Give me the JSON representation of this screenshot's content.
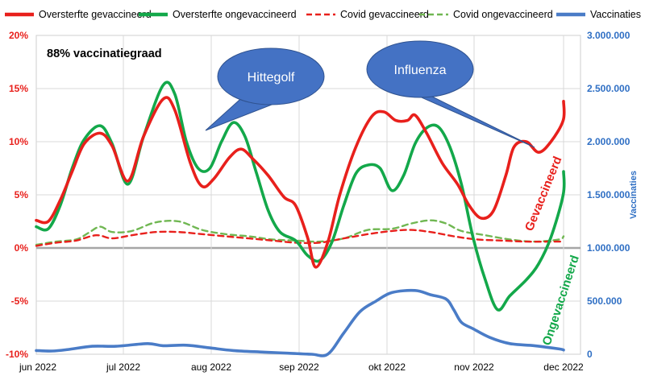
{
  "chart_data": {
    "type": "line",
    "subtitle": "88% vaccinatiegraad",
    "x_categories": [
      "jun 2022",
      "jul 2022",
      "aug 2022",
      "sep 2022",
      "okt 2022",
      "nov 2022",
      "dec 2022"
    ],
    "x_range_days": [
      0,
      185
    ],
    "y_left": {
      "ticks": [
        "20%",
        "15%",
        "10%",
        "5%",
        "0%",
        "-5%",
        "-10%"
      ],
      "min": -10,
      "max": 20
    },
    "y_right": {
      "label": "Vaccinaties",
      "ticks": [
        "3.000.000",
        "2.500.000",
        "2.000.000",
        "1.500.000",
        "1.000.000",
        "500.000",
        "0"
      ],
      "min": 0,
      "max": 3000000
    },
    "grid": true,
    "legend_position": "top",
    "series": [
      {
        "name": "Oversterfte gevaccineerd",
        "axis": "left",
        "color": "#e8201c",
        "dash": false,
        "points": [
          [
            0,
            2.6
          ],
          [
            3,
            2.5
          ],
          [
            6,
            4.5
          ],
          [
            9,
            7.2
          ],
          [
            12,
            9.8
          ],
          [
            16,
            10.8
          ],
          [
            19,
            9.6
          ],
          [
            23,
            6.3
          ],
          [
            27,
            10.5
          ],
          [
            32,
            14
          ],
          [
            35,
            13
          ],
          [
            39,
            8
          ],
          [
            42,
            5.8
          ],
          [
            45,
            6.5
          ],
          [
            49,
            8.5
          ],
          [
            52,
            9.3
          ],
          [
            55,
            8.4
          ],
          [
            59,
            6.8
          ],
          [
            63,
            4.8
          ],
          [
            66,
            4
          ],
          [
            69,
            1
          ],
          [
            71,
            -1.8
          ],
          [
            74,
            0.5
          ],
          [
            77,
            5
          ],
          [
            81,
            9.5
          ],
          [
            85,
            12.4
          ],
          [
            88,
            12.8
          ],
          [
            91,
            12
          ],
          [
            94,
            12
          ],
          [
            96,
            12.5
          ],
          [
            99,
            10.8
          ],
          [
            103,
            8
          ],
          [
            107,
            6
          ],
          [
            110,
            4
          ],
          [
            113,
            2.8
          ],
          [
            116,
            3.5
          ],
          [
            119,
            6.8
          ],
          [
            121,
            9.5
          ],
          [
            124,
            10
          ],
          [
            127,
            9
          ],
          [
            130,
            10
          ],
          [
            133,
            12
          ],
          [
            135,
            13.8
          ]
        ]
      },
      {
        "name": "Oversterfte ongevaccineerd",
        "axis": "left",
        "color": "#13a84a",
        "dash": false,
        "points": [
          [
            0,
            2
          ],
          [
            3,
            1.8
          ],
          [
            6,
            4
          ],
          [
            9,
            7.5
          ],
          [
            12,
            10.2
          ],
          [
            16,
            11.5
          ],
          [
            19,
            9.8
          ],
          [
            23,
            6
          ],
          [
            27,
            10.5
          ],
          [
            32,
            15.3
          ],
          [
            35,
            14.5
          ],
          [
            38,
            10
          ],
          [
            41,
            7.5
          ],
          [
            44,
            7.5
          ],
          [
            47,
            10
          ],
          [
            50,
            11.8
          ],
          [
            53,
            10.5
          ],
          [
            56,
            7
          ],
          [
            59,
            3.5
          ],
          [
            62,
            1.5
          ],
          [
            66,
            0.7
          ],
          [
            69,
            -0.7
          ],
          [
            72,
            -1.2
          ],
          [
            75,
            0.5
          ],
          [
            78,
            4
          ],
          [
            81,
            7
          ],
          [
            84,
            7.8
          ],
          [
            87,
            7.5
          ],
          [
            90,
            5.4
          ],
          [
            93,
            6.8
          ],
          [
            96,
            9.8
          ],
          [
            99,
            11.3
          ],
          [
            102,
            11.4
          ],
          [
            105,
            9.5
          ],
          [
            108,
            6
          ],
          [
            111,
            1
          ],
          [
            114,
            -3
          ],
          [
            117,
            -5.8
          ],
          [
            120,
            -4.5
          ],
          [
            124,
            -3
          ],
          [
            127,
            -1.5
          ],
          [
            130,
            1
          ],
          [
            133,
            5
          ],
          [
            135,
            7.2
          ]
        ]
      },
      {
        "name": "Covid gevaccineerd",
        "axis": "left",
        "color": "#e8201c",
        "dash": true,
        "points": [
          [
            0,
            0.2
          ],
          [
            5,
            0.5
          ],
          [
            10,
            0.7
          ],
          [
            15,
            1.2
          ],
          [
            19,
            0.9
          ],
          [
            24,
            1.2
          ],
          [
            30,
            1.5
          ],
          [
            36,
            1.5
          ],
          [
            42,
            1.3
          ],
          [
            48,
            1.1
          ],
          [
            54,
            0.9
          ],
          [
            60,
            0.7
          ],
          [
            66,
            0.5
          ],
          [
            72,
            0.5
          ],
          [
            78,
            0.9
          ],
          [
            84,
            1.3
          ],
          [
            90,
            1.6
          ],
          [
            95,
            1.7
          ],
          [
            100,
            1.5
          ],
          [
            106,
            1.1
          ],
          [
            112,
            0.8
          ],
          [
            118,
            0.7
          ],
          [
            124,
            0.6
          ],
          [
            130,
            0.6
          ],
          [
            135,
            0.6
          ]
        ]
      },
      {
        "name": "Covid ongevaccineerd",
        "axis": "left",
        "color": "#70b752",
        "dash": true,
        "points": [
          [
            0,
            0.3
          ],
          [
            5,
            0.6
          ],
          [
            10,
            0.8
          ],
          [
            13,
            1.4
          ],
          [
            16,
            2
          ],
          [
            19,
            1.5
          ],
          [
            24,
            1.6
          ],
          [
            30,
            2.4
          ],
          [
            36,
            2.5
          ],
          [
            42,
            1.7
          ],
          [
            48,
            1.3
          ],
          [
            54,
            1.1
          ],
          [
            60,
            0.8
          ],
          [
            66,
            0.7
          ],
          [
            72,
            0.6
          ],
          [
            78,
            0.9
          ],
          [
            84,
            1.7
          ],
          [
            90,
            1.8
          ],
          [
            95,
            2.3
          ],
          [
            100,
            2.6
          ],
          [
            104,
            2.3
          ],
          [
            108,
            1.6
          ],
          [
            114,
            1.2
          ],
          [
            120,
            0.8
          ],
          [
            126,
            0.6
          ],
          [
            132,
            0.8
          ],
          [
            135,
            1.1
          ]
        ]
      },
      {
        "name": "Vaccinaties",
        "axis": "right",
        "color": "#4a7cc7",
        "dash": false,
        "points": [
          [
            0,
            35000
          ],
          [
            4,
            30000
          ],
          [
            8,
            45000
          ],
          [
            14,
            75000
          ],
          [
            20,
            75000
          ],
          [
            28,
            100000
          ],
          [
            32,
            80000
          ],
          [
            38,
            85000
          ],
          [
            44,
            60000
          ],
          [
            50,
            35000
          ],
          [
            58,
            20000
          ],
          [
            64,
            10000
          ],
          [
            70,
            -5000
          ],
          [
            74,
            0
          ],
          [
            78,
            200000
          ],
          [
            82,
            400000
          ],
          [
            86,
            500000
          ],
          [
            90,
            580000
          ],
          [
            96,
            600000
          ],
          [
            100,
            560000
          ],
          [
            104,
            520000
          ],
          [
            106,
            420000
          ],
          [
            108,
            300000
          ],
          [
            111,
            240000
          ],
          [
            115,
            160000
          ],
          [
            120,
            100000
          ],
          [
            126,
            80000
          ],
          [
            132,
            50000
          ],
          [
            135,
            40000
          ]
        ]
      }
    ],
    "annotations": [
      {
        "text": "Hittegolf",
        "type": "callout",
        "color": "#4472c4"
      },
      {
        "text": "Influenza",
        "type": "callout",
        "color": "#4472c4"
      },
      {
        "text": "Gevaccineerd",
        "color": "#e8201c"
      },
      {
        "text": "Ongevaccineerd",
        "color": "#13a84a"
      }
    ]
  }
}
